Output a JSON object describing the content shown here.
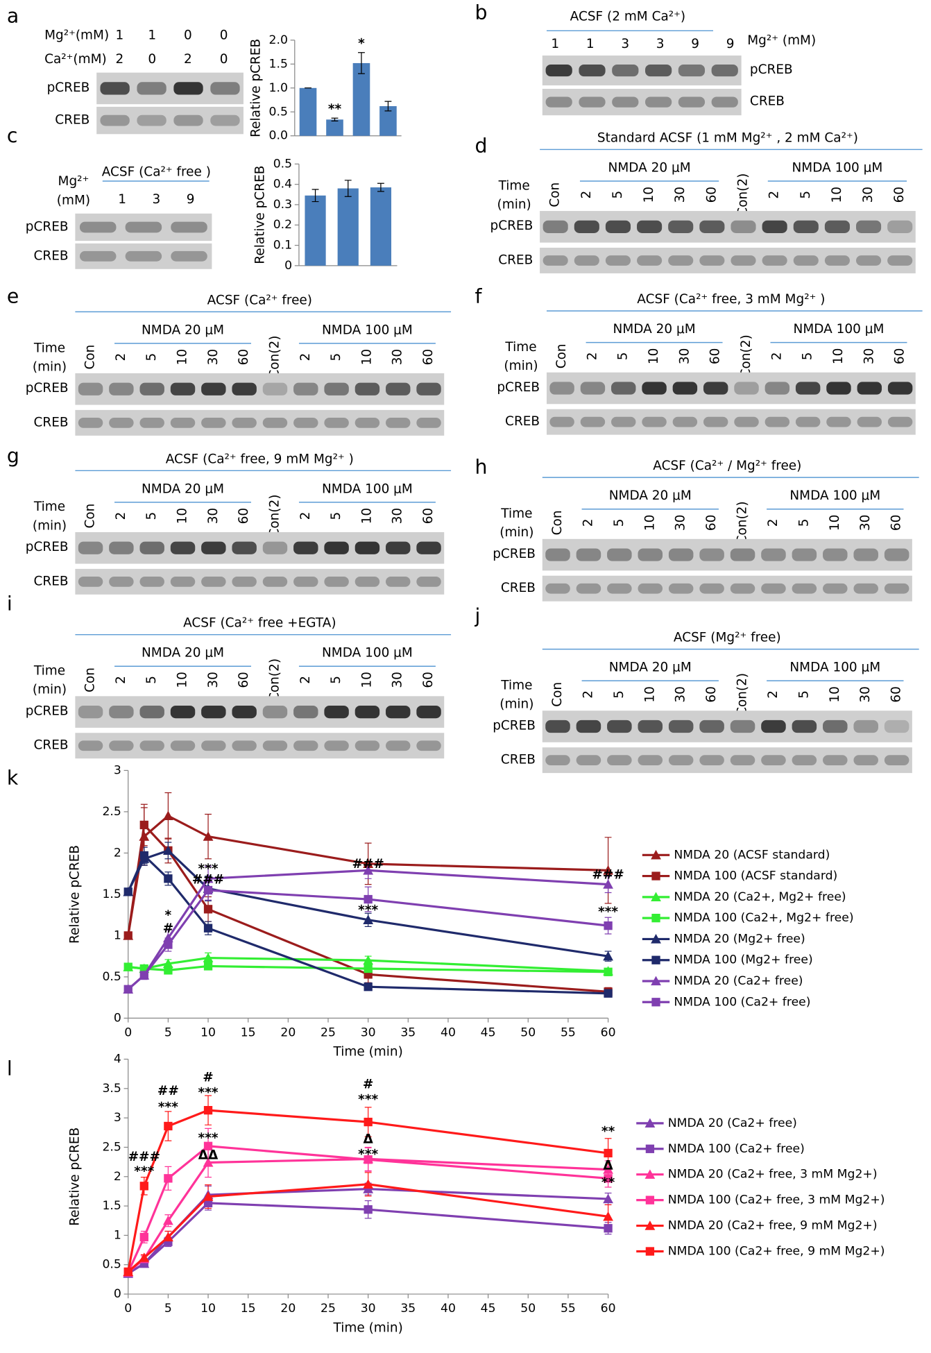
{
  "panel_labels": [
    "a",
    "b",
    "c",
    "d",
    "e",
    "f",
    "g",
    "h",
    "i",
    "j",
    "k",
    "l"
  ],
  "blots": {
    "a": {
      "mg_label": "Mg²⁺(mM)",
      "ca_label": "Ca²⁺(mM)",
      "mg": [
        "1",
        "1",
        "0",
        "0"
      ],
      "ca": [
        "2",
        "0",
        "2",
        "0"
      ],
      "rows": [
        "pCREB",
        "CREB"
      ]
    },
    "b": {
      "title": "ACSF (2 mM Ca²⁺)",
      "lanes": [
        "1",
        "1",
        "3",
        "3",
        "9",
        "9"
      ],
      "mg_label": "Mg²⁺ (mM)",
      "rows": [
        "pCREB",
        "CREB"
      ]
    },
    "c": {
      "mg_label": [
        "Mg²⁺",
        "(mM)"
      ],
      "title": "ACSF (Ca²⁺ free )",
      "lanes": [
        "1",
        "3",
        "9"
      ],
      "rows": [
        "pCREB",
        "CREB"
      ]
    },
    "d": {
      "title": "Standard ACSF (1 mM Mg²⁺ , 2 mM Ca²⁺)",
      "groups": [
        "NMDA 20 μM",
        "NMDA 100 μM"
      ],
      "time_label": [
        "Time",
        "(min)"
      ],
      "lanes": [
        "Con",
        "2",
        "5",
        "10",
        "30",
        "60",
        "Con(2)",
        "2",
        "5",
        "10",
        "30",
        "60"
      ],
      "rows": [
        "pCREB",
        "CREB"
      ]
    },
    "e": {
      "title": "ACSF (Ca²⁺ free)",
      "groups": [
        "NMDA 20 μM",
        "NMDA 100 μM"
      ],
      "time_label": [
        "Time",
        "(min)"
      ],
      "lanes": [
        "Con",
        "2",
        "5",
        "10",
        "30",
        "60",
        "Con(2)",
        "2",
        "5",
        "10",
        "30",
        "60"
      ],
      "rows": [
        "pCREB",
        "CREB"
      ]
    },
    "f": {
      "title": "ACSF (Ca²⁺ free, 3 mM Mg²⁺ )",
      "groups": [
        "NMDA 20 μM",
        "NMDA 100 μM"
      ],
      "time_label": [
        "Time",
        "(min)"
      ],
      "lanes": [
        "Con",
        "2",
        "5",
        "10",
        "30",
        "60",
        "Con(2)",
        "2",
        "5",
        "10",
        "30",
        "60"
      ],
      "rows": [
        "pCREB",
        "CREB"
      ]
    },
    "g": {
      "title": "ACSF (Ca²⁺ free, 9 mM Mg²⁺ )",
      "groups": [
        "NMDA 20 μM",
        "NMDA 100 μM"
      ],
      "time_label": [
        "Time",
        "(min)"
      ],
      "lanes": [
        "Con",
        "2",
        "5",
        "10",
        "30",
        "60",
        "Con(2)",
        "2",
        "5",
        "10",
        "30",
        "60"
      ],
      "rows": [
        "pCREB",
        "CREB"
      ]
    },
    "h": {
      "title": "ACSF (Ca²⁺ / Mg²⁺ free)",
      "groups": [
        "NMDA 20 μM",
        "NMDA 100 μM"
      ],
      "time_label": [
        "Time",
        "(min)"
      ],
      "lanes": [
        "Con",
        "2",
        "5",
        "10",
        "30",
        "60",
        "Con(2)",
        "2",
        "5",
        "10",
        "30",
        "60"
      ],
      "rows": [
        "pCREB",
        "CREB"
      ]
    },
    "i": {
      "title": "ACSF (Ca²⁺ free +EGTA)",
      "groups": [
        "NMDA 20 μM",
        "NMDA 100 μM"
      ],
      "time_label": [
        "Time",
        "(min)"
      ],
      "lanes": [
        "Con",
        "2",
        "5",
        "10",
        "30",
        "60",
        "Con(2)",
        "2",
        "5",
        "10",
        "30",
        "60"
      ],
      "rows": [
        "pCREB",
        "CREB"
      ]
    },
    "j": {
      "title": "ACSF (Mg²⁺ free)",
      "groups": [
        "NMDA 20 μM",
        "NMDA 100 μM"
      ],
      "time_label": [
        "Time",
        "(min)"
      ],
      "lanes": [
        "Con",
        "2",
        "5",
        "10",
        "30",
        "60",
        "Con(2)",
        "2",
        "5",
        "10",
        "30",
        "60"
      ],
      "rows": [
        "pCREB",
        "CREB"
      ]
    }
  },
  "chart_data": [
    {
      "type": "bar",
      "categories": [
        null,
        null,
        null,
        null
      ],
      "values": [
        1.0,
        0.34,
        1.52,
        0.62
      ],
      "errors": [
        0,
        0.03,
        0.22,
        0.1
      ],
      "color": "#4a7ebb",
      "y_label": "Relative pCREB",
      "ylim": [
        0,
        2
      ],
      "yticks": [
        {
          "value": 0,
          "label": "0.0"
        },
        {
          "value": 0.5,
          "label": "0.5"
        },
        {
          "value": 1,
          "label": "1.0"
        },
        {
          "value": 1.5,
          "label": "1.5"
        },
        {
          "value": 2,
          "label": "2.0"
        }
      ],
      "annotations": [
        "**",
        "*"
      ]
    },
    {
      "type": "bar",
      "categories": [
        null,
        null,
        null
      ],
      "values": [
        0.345,
        0.38,
        0.385
      ],
      "errors": [
        0.03,
        0.04,
        0.02
      ],
      "color": "#4a7ebb",
      "y_label": "Relative pCREB",
      "ylim": [
        0,
        0.5
      ],
      "yticks": [
        0,
        0.1,
        0.2,
        0.3,
        0.4,
        0.5
      ]
    },
    {
      "type": "line",
      "x_label": "Time (min)",
      "y_label": "Relative pCREB",
      "x": [
        0,
        2,
        5,
        10,
        30,
        60
      ],
      "xlim": [
        0,
        60
      ],
      "xticks": [
        0,
        5,
        10,
        15,
        20,
        25,
        30,
        35,
        40,
        45,
        50,
        55,
        60
      ],
      "ylim": [
        0,
        3
      ],
      "yticks": [
        0,
        0.5,
        1,
        1.5,
        2,
        2.5,
        3
      ],
      "series": [
        {
          "name": "NMDA 20 (ACSF standard)",
          "color": "#9b1c1c",
          "marker": "triangle",
          "values": [
            1.0,
            2.2,
            2.45,
            2.2,
            1.87,
            1.79
          ],
          "errors": [
            0,
            0.35,
            0.28,
            0.27,
            0.25,
            0.4
          ]
        },
        {
          "name": "NMDA 100 (ACSF standard)",
          "color": "#9b1c1c",
          "marker": "square",
          "values": [
            1.0,
            2.34,
            2.03,
            1.32,
            0.53,
            0.32
          ],
          "errors": [
            0,
            0.25,
            0.15,
            0.15,
            0.1,
            0.05
          ]
        },
        {
          "name": "NMDA 20 (Ca2+, Mg2+ free)",
          "color": "#33ee33",
          "marker": "triangle",
          "values": [
            0.62,
            0.6,
            0.66,
            0.73,
            0.7,
            0.57
          ],
          "errors": [
            0.03,
            0.03,
            0.05,
            0.06,
            0.05,
            0.03
          ]
        },
        {
          "name": "NMDA 100 (Ca2+, Mg2+ free)",
          "color": "#33ee33",
          "marker": "square",
          "values": [
            0.62,
            0.6,
            0.58,
            0.63,
            0.6,
            0.56
          ],
          "errors": [
            0.03,
            0.03,
            0.04,
            0.04,
            0.04,
            0.03
          ]
        },
        {
          "name": "NMDA 20 (Mg2+ free)",
          "color": "#1f2a6b",
          "marker": "triangle",
          "values": [
            1.53,
            1.93,
            2.03,
            1.57,
            1.19,
            0.75
          ],
          "errors": [
            0.03,
            0.08,
            0.1,
            0.15,
            0.08,
            0.06
          ]
        },
        {
          "name": "NMDA 100 (Mg2+ free)",
          "color": "#1f2a6b",
          "marker": "square",
          "values": [
            1.53,
            1.97,
            1.69,
            1.09,
            0.38,
            0.3
          ],
          "errors": [
            0.03,
            0.1,
            0.08,
            0.08,
            0.03,
            0.03
          ]
        },
        {
          "name": "NMDA 20 (Ca2+ free)",
          "color": "#7f3fb0",
          "marker": "triangle",
          "values": [
            0.35,
            0.52,
            0.97,
            1.69,
            1.79,
            1.62
          ],
          "errors": [
            0.03,
            0.05,
            0.1,
            0.15,
            0.1,
            0.1
          ]
        },
        {
          "name": "NMDA 100 (Ca2+ free)",
          "color": "#7f3fb0",
          "marker": "square",
          "values": [
            0.35,
            0.52,
            0.89,
            1.55,
            1.44,
            1.12
          ],
          "errors": [
            0.03,
            0.05,
            0.08,
            0.12,
            0.15,
            0.1
          ]
        }
      ],
      "annotations": [
        "***",
        "###",
        "*",
        "#",
        "###",
        "***",
        "###",
        "***"
      ]
    },
    {
      "type": "line",
      "x_label": "Time (min)",
      "y_label": "Relative pCREB",
      "x": [
        0,
        2,
        5,
        10,
        30,
        60
      ],
      "xlim": [
        0,
        60
      ],
      "xticks": [
        0,
        5,
        10,
        15,
        20,
        25,
        30,
        35,
        40,
        45,
        50,
        55,
        60
      ],
      "ylim": [
        0,
        4
      ],
      "yticks": [
        0,
        0.5,
        1,
        1.5,
        2,
        2.5,
        3,
        3.5,
        4
      ],
      "series": [
        {
          "name": "NMDA 20 (Ca2+ free)",
          "color": "#7f3fb0",
          "marker": "triangle",
          "values": [
            0.35,
            0.52,
            0.97,
            1.69,
            1.79,
            1.62
          ],
          "errors": [
            0.03,
            0.05,
            0.1,
            0.15,
            0.1,
            0.1
          ]
        },
        {
          "name": "NMDA 100 (Ca2+ free)",
          "color": "#7f3fb0",
          "marker": "square",
          "values": [
            0.35,
            0.52,
            0.89,
            1.55,
            1.44,
            1.12
          ],
          "errors": [
            0.03,
            0.05,
            0.08,
            0.12,
            0.15,
            0.1
          ]
        },
        {
          "name": "NMDA 20 (Ca2+ free, 3 mM Mg2+)",
          "color": "#ff3399",
          "marker": "triangle",
          "values": [
            0.37,
            0.6,
            1.25,
            2.24,
            2.3,
            2.12
          ],
          "errors": [
            0.03,
            0.05,
            0.1,
            0.25,
            0.2,
            0.15
          ]
        },
        {
          "name": "NMDA 100 (Ca2+ free, 3 mM Mg2+)",
          "color": "#ff3399",
          "marker": "square",
          "values": [
            0.37,
            0.97,
            1.97,
            2.52,
            2.29,
            1.97
          ],
          "errors": [
            0.03,
            0.1,
            0.2,
            0.3,
            0.2,
            0.15
          ]
        },
        {
          "name": "NMDA 20 (Ca2+ free, 9 mM Mg2+)",
          "color": "#ff1a1a",
          "marker": "triangle",
          "values": [
            0.38,
            0.62,
            0.97,
            1.66,
            1.87,
            1.32
          ],
          "errors": [
            0.03,
            0.05,
            0.1,
            0.2,
            0.2,
            0.2
          ]
        },
        {
          "name": "NMDA 100 (Ca2+ free, 9 mM Mg2+)",
          "color": "#ff1a1a",
          "marker": "square",
          "values": [
            0.38,
            1.84,
            2.86,
            3.13,
            2.93,
            2.4
          ],
          "errors": [
            0.03,
            0.15,
            0.25,
            0.25,
            0.25,
            0.25
          ]
        }
      ],
      "annotations": [
        "###",
        "***",
        "##",
        "***",
        "#",
        "***",
        "***",
        "ΔΔ",
        "#",
        "***",
        "Δ",
        "***",
        "**",
        "Δ",
        "**"
      ]
    }
  ]
}
